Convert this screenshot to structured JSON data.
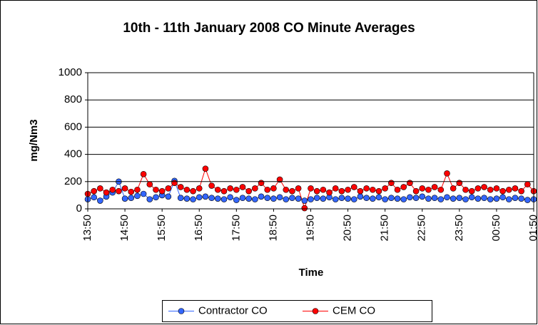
{
  "chart_data": {
    "type": "line",
    "title": "10th - 11th January 2008 CO Minute Averages",
    "x_label": "Time",
    "y_label": "mg/Nm3",
    "categories": [
      "13:50",
      null,
      null,
      null,
      null,
      null,
      "14:50",
      null,
      null,
      null,
      null,
      null,
      "15:50",
      null,
      null,
      null,
      null,
      null,
      "16:50",
      null,
      null,
      null,
      null,
      null,
      "17:50",
      null,
      null,
      null,
      null,
      null,
      "18:50",
      null,
      null,
      null,
      null,
      null,
      "19:50",
      null,
      null,
      null,
      null,
      null,
      "20:50",
      null,
      null,
      null,
      null,
      null,
      "21:50",
      null,
      null,
      null,
      null,
      null,
      "22:50",
      null,
      null,
      null,
      null,
      null,
      "23:50",
      null,
      null,
      null,
      null,
      null,
      "00:50",
      null,
      null,
      null,
      null,
      null,
      "01:50"
    ],
    "series": [
      {
        "name": "Contractor CO",
        "color": "#3366ff",
        "values": [
          70,
          85,
          60,
          90,
          120,
          200,
          75,
          80,
          95,
          110,
          70,
          85,
          100,
          90,
          205,
          80,
          75,
          70,
          85,
          90,
          80,
          75,
          70,
          85,
          65,
          80,
          75,
          70,
          90,
          80,
          75,
          85,
          70,
          80,
          75,
          60,
          70,
          80,
          75,
          85,
          70,
          80,
          75,
          70,
          90,
          80,
          75,
          85,
          70,
          80,
          75,
          70,
          85,
          80,
          90,
          75,
          80,
          70,
          85,
          75,
          80,
          70,
          85,
          75,
          80,
          70,
          75,
          85,
          70,
          80,
          75,
          65,
          70
        ]
      },
      {
        "name": "CEM CO",
        "color": "#ff0000",
        "values": [
          110,
          130,
          150,
          120,
          140,
          130,
          150,
          125,
          140,
          255,
          180,
          140,
          130,
          150,
          190,
          160,
          140,
          130,
          150,
          295,
          170,
          140,
          130,
          150,
          140,
          160,
          130,
          150,
          190,
          140,
          150,
          215,
          140,
          130,
          150,
          5,
          150,
          130,
          140,
          120,
          150,
          130,
          140,
          160,
          130,
          150,
          140,
          130,
          150,
          190,
          140,
          160,
          190,
          130,
          150,
          140,
          160,
          140,
          260,
          150,
          190,
          140,
          130,
          150,
          160,
          140,
          150,
          130,
          140,
          150,
          130,
          180,
          130
        ]
      }
    ],
    "ylim": [
      0,
      1000
    ],
    "yticks": [
      0,
      200,
      400,
      600,
      800,
      1000
    ],
    "grid": true,
    "legend": "bottom"
  }
}
